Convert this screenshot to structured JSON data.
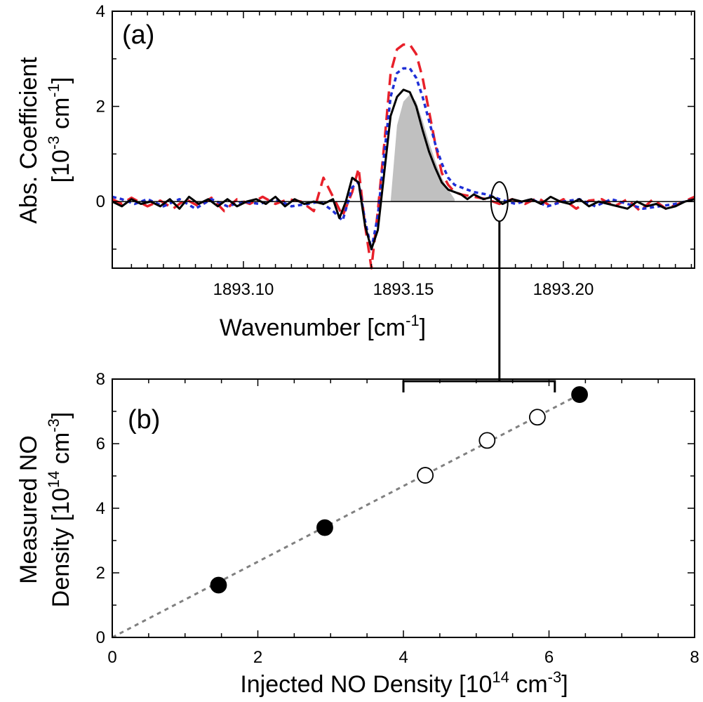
{
  "chart_data": [
    {
      "panel": "(a)",
      "type": "line",
      "xlabel": "Wavenumber [cm",
      "xlabel_sup": "-1",
      "xlabel_end": "]",
      "ylabel_line1": "Abs. Coefficient",
      "ylabel_line2_pre": "[10",
      "ylabel_line2_sup1": "-3",
      "ylabel_line2_mid": " cm",
      "ylabel_line2_sup2": "-1",
      "ylabel_line2_end": "]",
      "xlim": [
        1893.059,
        1893.241
      ],
      "ylim": [
        -1.4,
        4.0
      ],
      "xticks": [
        1893.1,
        1893.15,
        1893.2
      ],
      "xtick_labels": [
        "1893.10",
        "1893.15",
        "1893.20"
      ],
      "yticks": [
        0,
        2,
        4
      ],
      "ytick_labels": [
        "0",
        "2",
        "4"
      ],
      "baseline": 0,
      "fill_x": [
        1893.146,
        1893.148,
        1893.15,
        1893.152,
        1893.154,
        1893.156,
        1893.158,
        1893.16,
        1893.162,
        1893.164,
        1893.166
      ],
      "fill_y": [
        0.0,
        1.6,
        2.1,
        2.25,
        2.1,
        1.7,
        1.25,
        0.85,
        0.5,
        0.25,
        0.05
      ],
      "series": [
        {
          "name": "red-dashed",
          "color": "#e8202a",
          "dash": "long",
          "x": [
            1893.059,
            1893.062,
            1893.065,
            1893.07,
            1893.074,
            1893.078,
            1893.082,
            1893.086,
            1893.09,
            1893.094,
            1893.098,
            1893.102,
            1893.106,
            1893.11,
            1893.114,
            1893.118,
            1893.122,
            1893.125,
            1893.128,
            1893.131,
            1893.134,
            1893.136,
            1893.138,
            1893.14,
            1893.142,
            1893.144,
            1893.146,
            1893.148,
            1893.15,
            1893.152,
            1893.154,
            1893.156,
            1893.158,
            1893.16,
            1893.162,
            1893.164,
            1893.166,
            1893.168,
            1893.172,
            1893.176,
            1893.18,
            1893.184,
            1893.188,
            1893.192,
            1893.196,
            1893.2,
            1893.204,
            1893.208,
            1893.212,
            1893.216,
            1893.22,
            1893.224,
            1893.228,
            1893.232,
            1893.236,
            1893.241
          ],
          "y": [
            0.05,
            -0.05,
            0.08,
            -0.1,
            0.02,
            -0.15,
            0.05,
            -0.1,
            0.08,
            -0.2,
            0.05,
            -0.05,
            0.1,
            -0.05,
            0.05,
            0.0,
            -0.2,
            0.5,
            0.1,
            -0.3,
            0.2,
            0.7,
            -0.5,
            -1.4,
            -0.2,
            1.2,
            2.7,
            3.2,
            3.3,
            3.3,
            3.1,
            2.6,
            1.9,
            1.2,
            0.6,
            0.35,
            0.2,
            0.15,
            0.1,
            0.05,
            -0.05,
            0.05,
            -0.05,
            0.08,
            -0.1,
            0.05,
            -0.15,
            0.02,
            0.05,
            -0.1,
            0.05,
            -0.2,
            0.05,
            -0.15,
            -0.05,
            0.1
          ]
        },
        {
          "name": "blue-dotted",
          "color": "#1f2fd6",
          "dash": "short",
          "x": [
            1893.059,
            1893.062,
            1893.066,
            1893.07,
            1893.075,
            1893.08,
            1893.085,
            1893.09,
            1893.095,
            1893.1,
            1893.105,
            1893.11,
            1893.115,
            1893.12,
            1893.124,
            1893.128,
            1893.131,
            1893.134,
            1893.136,
            1893.138,
            1893.14,
            1893.142,
            1893.144,
            1893.146,
            1893.148,
            1893.15,
            1893.152,
            1893.154,
            1893.156,
            1893.158,
            1893.16,
            1893.162,
            1893.164,
            1893.166,
            1893.168,
            1893.172,
            1893.176,
            1893.18,
            1893.185,
            1893.19,
            1893.195,
            1893.2,
            1893.205,
            1893.21,
            1893.215,
            1893.22,
            1893.225,
            1893.23,
            1893.235,
            1893.241
          ],
          "y": [
            0.1,
            0.05,
            -0.05,
            0.05,
            -0.1,
            0.05,
            -0.15,
            0.05,
            -0.1,
            0.0,
            -0.05,
            0.05,
            -0.1,
            -0.05,
            0.0,
            -0.2,
            -0.4,
            0.3,
            0.4,
            -0.4,
            -1.0,
            -0.3,
            1.0,
            2.2,
            2.7,
            2.8,
            2.8,
            2.6,
            2.2,
            1.7,
            1.2,
            0.8,
            0.5,
            0.35,
            0.3,
            0.2,
            0.15,
            0.05,
            -0.05,
            0.05,
            -0.1,
            0.0,
            0.05,
            -0.1,
            0.05,
            -0.05,
            -0.15,
            -0.1,
            -0.05,
            0.05
          ]
        },
        {
          "name": "black-solid",
          "color": "#000000",
          "dash": "none",
          "x": [
            1893.059,
            1893.062,
            1893.065,
            1893.068,
            1893.071,
            1893.074,
            1893.077,
            1893.08,
            1893.083,
            1893.086,
            1893.089,
            1893.092,
            1893.095,
            1893.098,
            1893.101,
            1893.104,
            1893.107,
            1893.11,
            1893.113,
            1893.116,
            1893.119,
            1893.122,
            1893.125,
            1893.128,
            1893.13,
            1893.132,
            1893.134,
            1893.136,
            1893.138,
            1893.14,
            1893.142,
            1893.144,
            1893.146,
            1893.148,
            1893.15,
            1893.152,
            1893.154,
            1893.156,
            1893.158,
            1893.16,
            1893.162,
            1893.164,
            1893.166,
            1893.168,
            1893.17,
            1893.172,
            1893.175,
            1893.178,
            1893.181,
            1893.184,
            1893.187,
            1893.19,
            1893.193,
            1893.196,
            1893.199,
            1893.202,
            1893.205,
            1893.208,
            1893.211,
            1893.214,
            1893.217,
            1893.22,
            1893.223,
            1893.226,
            1893.229,
            1893.232,
            1893.235,
            1893.238,
            1893.241
          ],
          "y": [
            0.0,
            -0.1,
            0.05,
            -0.05,
            0.0,
            -0.1,
            0.05,
            -0.15,
            0.1,
            -0.05,
            0.05,
            -0.1,
            0.05,
            -0.1,
            0.0,
            0.05,
            -0.05,
            0.1,
            -0.1,
            0.05,
            -0.05,
            0.0,
            -0.05,
            0.05,
            -0.35,
            0.0,
            0.5,
            0.4,
            -0.5,
            -1.0,
            -0.6,
            0.6,
            1.8,
            2.2,
            2.35,
            2.3,
            2.0,
            1.5,
            1.05,
            0.7,
            0.4,
            0.25,
            0.2,
            0.15,
            0.05,
            0.15,
            0.05,
            0.1,
            -0.05,
            0.05,
            0.0,
            0.05,
            -0.05,
            0.1,
            0.0,
            -0.05,
            0.05,
            -0.1,
            0.0,
            -0.05,
            -0.1,
            -0.15,
            0.0,
            -0.1,
            -0.05,
            -0.15,
            -0.1,
            0.0,
            0.05
          ]
        }
      ],
      "marker_ellipse": {
        "x": 1893.18,
        "y": 0.0
      }
    },
    {
      "panel": "(b)",
      "type": "scatter",
      "xlabel_pre": "Injected NO Density [10",
      "xlabel_sup1": "14",
      "xlabel_mid": " cm",
      "xlabel_sup2": "-3",
      "xlabel_end": "]",
      "ylabel_line1": "Measured NO",
      "ylabel_line2_pre": "Density [10",
      "ylabel_line2_sup1": "14",
      "ylabel_line2_mid": " cm",
      "ylabel_line2_sup2": "-3",
      "ylabel_line2_end": "]",
      "xlim": [
        0,
        8
      ],
      "ylim": [
        0,
        8
      ],
      "xticks": [
        0,
        2,
        4,
        6,
        8
      ],
      "xtick_labels": [
        "0",
        "2",
        "4",
        "6",
        "8"
      ],
      "yticks": [
        0,
        2,
        4,
        6,
        8
      ],
      "ytick_labels": [
        "0",
        "2",
        "4",
        "6",
        "8"
      ],
      "fit_line": {
        "x": [
          0.0,
          6.4
        ],
        "y": [
          0.0,
          7.5
        ],
        "color": "#808080"
      },
      "series": [
        {
          "name": "filled",
          "x": [
            1.46,
            2.92,
            6.42
          ],
          "y": [
            1.62,
            3.4,
            7.52
          ]
        },
        {
          "name": "open",
          "x": [
            4.3,
            5.15,
            5.84
          ],
          "y": [
            5.02,
            6.1,
            6.82
          ]
        }
      ],
      "bracket": {
        "x_start": 4.0,
        "x_end": 6.08,
        "y": 7.5
      }
    }
  ]
}
